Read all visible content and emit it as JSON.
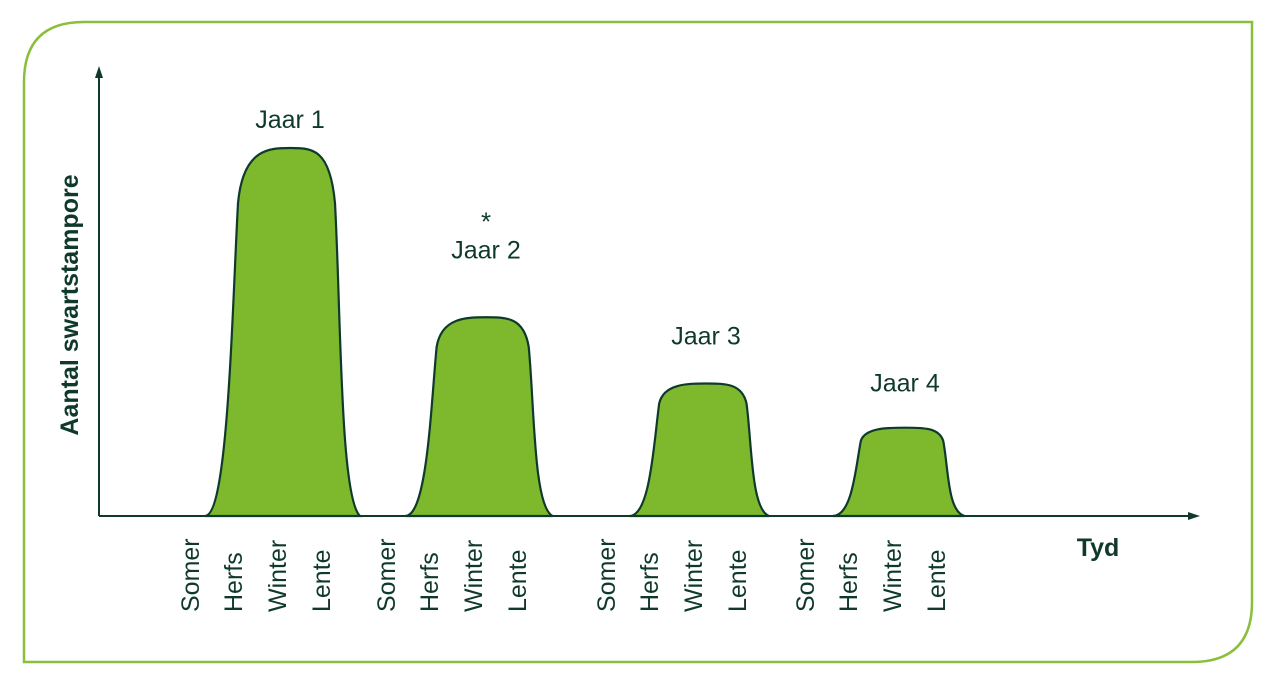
{
  "colors": {
    "frame": "#8abf3c",
    "fill": "#7db82d",
    "stroke": "#0f3a2b",
    "text": "#0f3a2b"
  },
  "chart_data": {
    "type": "area",
    "xlabel": "Tyd",
    "ylabel": "Aantal swartstampore",
    "season_labels": [
      "Somer",
      "Herfs",
      "Winter",
      "Lente"
    ],
    "units": "relative (no y-axis ticks)",
    "series": [
      {
        "name": "Jaar 1",
        "peak_value": 100,
        "peak_season": "Winter",
        "annotation": ""
      },
      {
        "name": "Jaar 2",
        "peak_value": 54,
        "peak_season": "Winter",
        "annotation": "*"
      },
      {
        "name": "Jaar 3",
        "peak_value": 36,
        "peak_season": "Winter",
        "annotation": ""
      },
      {
        "name": "Jaar 4",
        "peak_value": 24,
        "peak_season": "Winter",
        "annotation": ""
      }
    ]
  }
}
